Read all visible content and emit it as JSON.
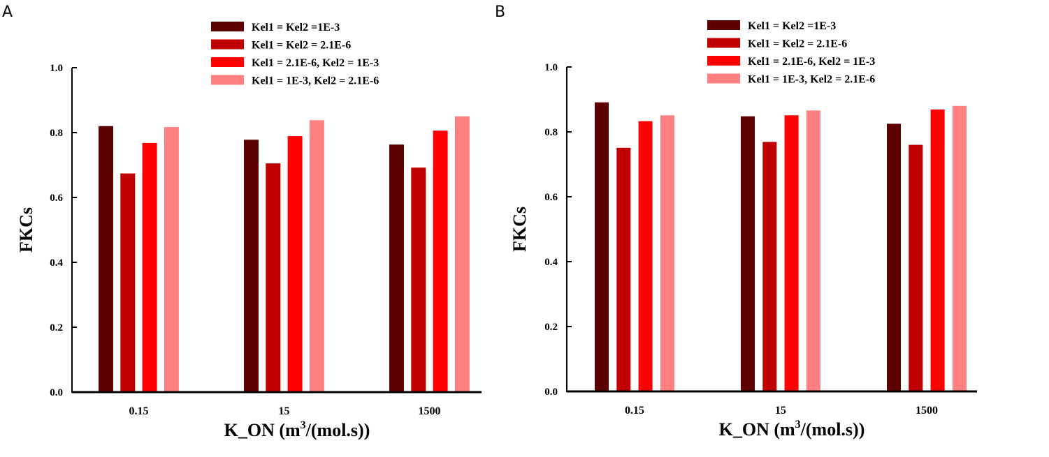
{
  "chart_data": [
    {
      "panel": "A",
      "type": "bar",
      "categories": [
        "0.15",
        "15",
        "1500"
      ],
      "series": [
        {
          "name": "Kel1 = Kel2 =1E-3",
          "color": "#5c0000",
          "values": [
            0.82,
            0.778,
            0.763
          ]
        },
        {
          "name": "Kel1 = Kel2 = 2.1E-6",
          "color": "#c00000",
          "values": [
            0.674,
            0.705,
            0.692
          ]
        },
        {
          "name": "Kel1 = 2.1E-6, Kel2 = 1E-3",
          "color": "#ff0000",
          "values": [
            0.768,
            0.789,
            0.806
          ]
        },
        {
          "name": "Kel1 = 1E-3, Kel2 = 2.1E-6",
          "color": "#ff8080",
          "values": [
            0.817,
            0.838,
            0.85
          ]
        }
      ],
      "ylabel": "FKCs",
      "xlabel_main": "K_ON (m",
      "xlabel_sup": "3",
      "xlabel_tail": "/(mol.s))",
      "ylim": [
        0,
        1.0
      ],
      "yticks": [
        "0.0",
        "0.2",
        "0.4",
        "0.6",
        "0.8",
        "1.0"
      ],
      "legend_position": "top-right"
    },
    {
      "panel": "B",
      "type": "bar",
      "categories": [
        "0.15",
        "15",
        "1500"
      ],
      "series": [
        {
          "name": "Kel1 = Kel2 =1E-3",
          "color": "#5c0000",
          "values": [
            0.891,
            0.848,
            0.825
          ]
        },
        {
          "name": "Kel1 = Kel2 = 2.1E-6",
          "color": "#c00000",
          "values": [
            0.751,
            0.769,
            0.76
          ]
        },
        {
          "name": "Kel1 = 2.1E-6, Kel2 = 1E-3",
          "color": "#ff0000",
          "values": [
            0.833,
            0.851,
            0.869
          ]
        },
        {
          "name": "Kel1 = 1E-3, Kel2 = 2.1E-6",
          "color": "#ff8080",
          "values": [
            0.851,
            0.866,
            0.88
          ]
        }
      ],
      "ylabel": "FKCs",
      "xlabel_main": "K_ON (m",
      "xlabel_sup": "3",
      "xlabel_tail": "/(mol.s))",
      "ylim": [
        0,
        1.0
      ],
      "yticks": [
        "0.0",
        "0.2",
        "0.4",
        "0.6",
        "0.8",
        "1.0"
      ],
      "legend_position": "top-right"
    }
  ]
}
